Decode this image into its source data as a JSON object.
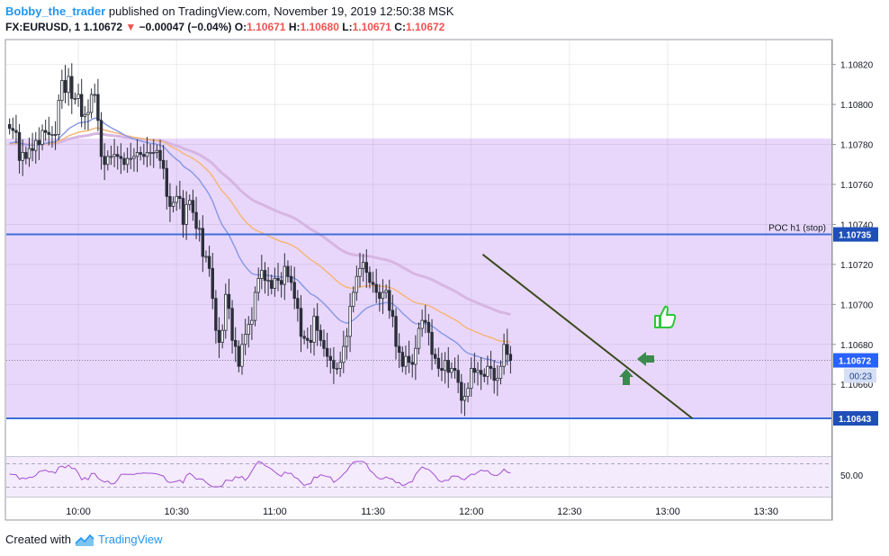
{
  "header": {
    "author": "Bobby_the_trader",
    "published": "published on TradingView.com, November 19, 2019 12:50:38 MSK",
    "symbol": "FX:EURUSD, 1",
    "last": "1.10672",
    "change_arrow": "▼",
    "change": "−0.00047 (−0.04%)",
    "open_label": "O:",
    "open": "1.10671",
    "high_label": "H:",
    "high": "1.10680",
    "low_label": "L:",
    "low": "1.10671",
    "close_label": "C:",
    "close": "1.10672"
  },
  "footer": {
    "created_with": "Created with",
    "brand": "TradingView"
  },
  "chart_data": {
    "type": "candlestick",
    "ylim": [
      1.10625,
      1.10832
    ],
    "y_ticks": [
      "1.10820",
      "1.10800",
      "1.10780",
      "1.10760",
      "1.10740",
      "1.10720",
      "1.10700",
      "1.10680",
      "1.10660"
    ],
    "y_tick_values": [
      1.1082,
      1.108,
      1.1078,
      1.1076,
      1.1074,
      1.1072,
      1.107,
      1.1068,
      1.1066
    ],
    "x_ticks": [
      "10:00",
      "10:30",
      "11:00",
      "11:30",
      "12:00",
      "12:30",
      "13:00",
      "13:30"
    ],
    "x_tick_minutes": [
      600,
      630,
      660,
      690,
      720,
      750,
      780,
      810
    ],
    "x_range_minutes": [
      578,
      830
    ],
    "shaded_zone": [
      1.10643,
      1.10783
    ],
    "levels": [
      {
        "value": 1.10735,
        "label": "POC h1 (stop)",
        "badge": "1.10735"
      },
      {
        "value": 1.10643,
        "label": "",
        "badge": "1.10643"
      }
    ],
    "last_price": {
      "value": 1.10672,
      "badge": "1.10672",
      "countdown": "00:23"
    },
    "trendline": {
      "from": [
        723.5,
        1.10725
      ],
      "to": [
        787.5,
        1.10643
      ]
    },
    "candle_closes": [
      1.10788,
      1.10787,
      1.10786,
      1.10772,
      1.10776,
      1.10773,
      1.10778,
      1.10777,
      1.10782,
      1.1078,
      1.10787,
      1.10786,
      1.10785,
      1.10785,
      1.10785,
      1.10802,
      1.10812,
      1.10806,
      1.10814,
      1.10803,
      1.10803,
      1.10805,
      1.10794,
      1.10795,
      1.10796,
      1.10805,
      1.10805,
      1.10792,
      1.10774,
      1.1077,
      1.10774,
      1.10774,
      1.10775,
      1.10774,
      1.10773,
      1.1077,
      1.10773,
      1.10773,
      1.10774,
      1.10776,
      1.10775,
      1.10774,
      1.10776,
      1.10776,
      1.10776,
      1.10777,
      1.10772,
      1.10768,
      1.10754,
      1.10749,
      1.10751,
      1.10754,
      1.10753,
      1.1074,
      1.1075,
      1.10752,
      1.10746,
      1.10738,
      1.10738,
      1.10724,
      1.10724,
      1.10718,
      1.10703,
      1.10687,
      1.10681,
      1.10687,
      1.10705,
      1.10698,
      1.10682,
      1.10679,
      1.10669,
      1.1068,
      1.10685,
      1.1069,
      1.10692,
      1.10706,
      1.10713,
      1.10717,
      1.10712,
      1.10712,
      1.10708,
      1.10713,
      1.10712,
      1.1071,
      1.10719,
      1.10714,
      1.10711,
      1.10703,
      1.10698,
      1.10684,
      1.10683,
      1.10682,
      1.10681,
      1.10694,
      1.10687,
      1.10682,
      1.10678,
      1.10674,
      1.10672,
      1.10668,
      1.10668,
      1.10671,
      1.10679,
      1.10684,
      1.10699,
      1.10706,
      1.10714,
      1.10718,
      1.10721,
      1.10716,
      1.10711,
      1.1071,
      1.10706,
      1.10703,
      1.10706,
      1.10707,
      1.10697,
      1.10694,
      1.10679,
      1.10676,
      1.10669,
      1.10674,
      1.10671,
      1.1067,
      1.10678,
      1.10688,
      1.10692,
      1.10691,
      1.10686,
      1.10675,
      1.10673,
      1.10668,
      1.10667,
      1.10672,
      1.10666,
      1.10668,
      1.10667,
      1.10661,
      1.10652,
      1.10654,
      1.10658,
      1.10668,
      1.10666,
      1.10667,
      1.10665,
      1.10664,
      1.10669,
      1.10668,
      1.10662,
      1.10663,
      1.10669,
      1.1068,
      1.10675,
      1.10672
    ]
  }
}
